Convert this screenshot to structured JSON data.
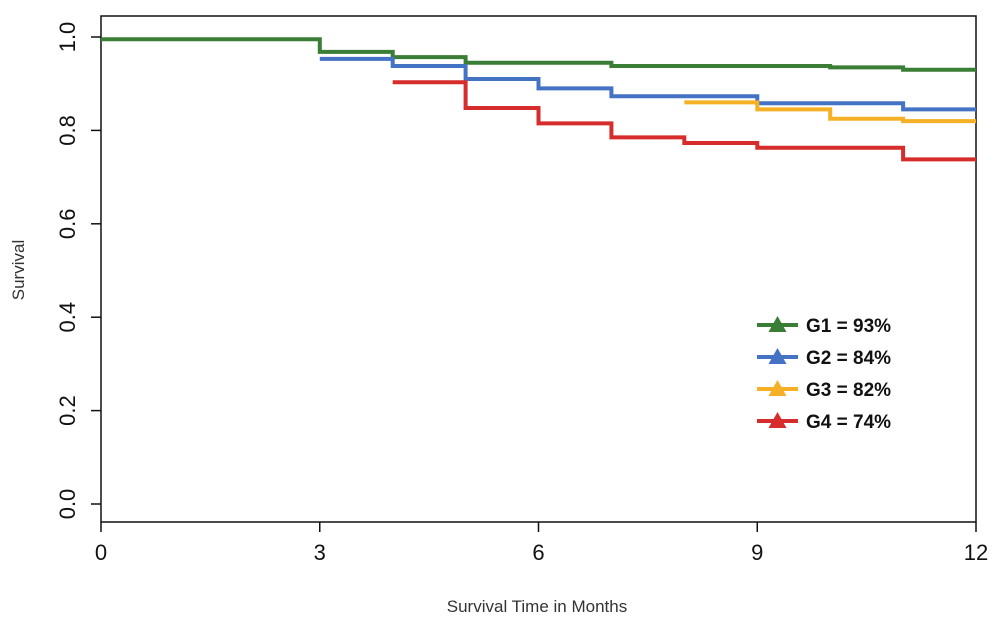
{
  "chart_data": {
    "type": "line",
    "title": "",
    "xlabel": "Survival Time in Months",
    "ylabel": "Survival",
    "xlim": [
      0,
      12
    ],
    "ylim": [
      0,
      1
    ],
    "x_ticks": [
      "0",
      "3",
      "6",
      "9",
      "12"
    ],
    "y_ticks": [
      "0.0",
      "0.2",
      "0.4",
      "0.6",
      "0.8",
      "1.0"
    ],
    "grid": false,
    "legend_position": "bottom-right",
    "legend_marker": "triangle",
    "series": [
      {
        "name": "G1 = 93%",
        "color": "#3a7d34",
        "steps": [
          [
            0,
            0.995
          ],
          [
            3.0,
            0.968
          ],
          [
            4.0,
            0.957
          ],
          [
            5.0,
            0.945
          ],
          [
            7.0,
            0.938
          ],
          [
            10.0,
            0.935
          ],
          [
            11.0,
            0.93
          ]
        ],
        "end": 12
      },
      {
        "name": "G2 = 84%",
        "color": "#4472c4",
        "steps": [
          [
            3.0,
            0.953
          ],
          [
            4.0,
            0.938
          ],
          [
            5.0,
            0.91
          ],
          [
            6.0,
            0.89
          ],
          [
            7.0,
            0.873
          ],
          [
            9.0,
            0.858
          ],
          [
            11.0,
            0.845
          ]
        ],
        "end": 12
      },
      {
        "name": "G3 = 82%",
        "color": "#f5b026",
        "steps": [
          [
            8.0,
            0.86
          ],
          [
            9.0,
            0.845
          ],
          [
            10.0,
            0.825
          ],
          [
            11.0,
            0.82
          ]
        ],
        "end": 12
      },
      {
        "name": "G4 = 74%",
        "color": "#d62c2c",
        "steps": [
          [
            4.0,
            0.903
          ],
          [
            5.0,
            0.848
          ],
          [
            6.0,
            0.815
          ],
          [
            7.0,
            0.785
          ],
          [
            8.0,
            0.773
          ],
          [
            9.0,
            0.763
          ],
          [
            11.0,
            0.738
          ]
        ],
        "end": 12
      }
    ]
  }
}
